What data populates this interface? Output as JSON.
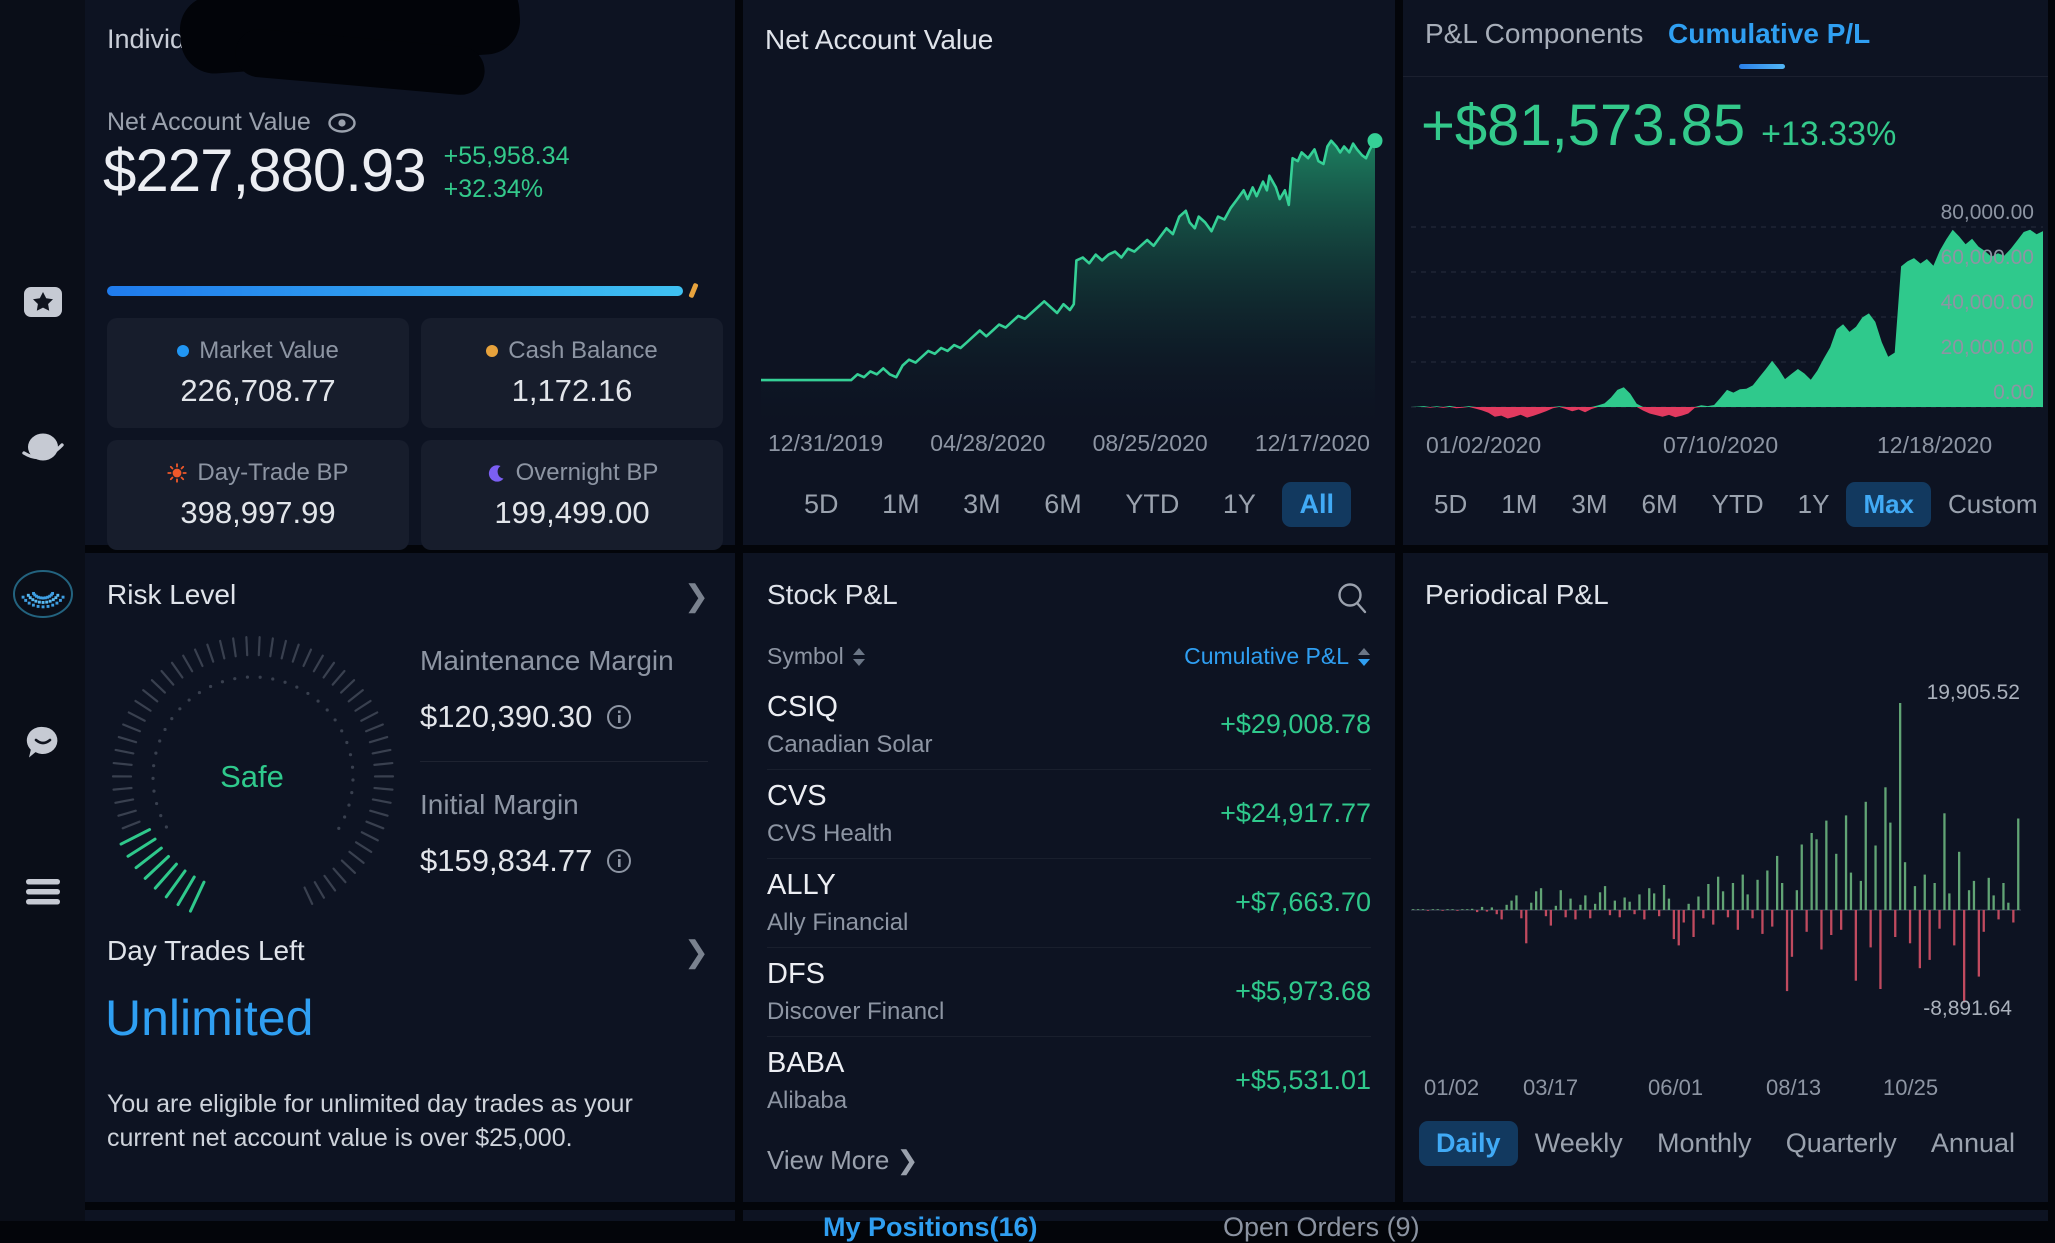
{
  "sidebar": {
    "icons": [
      {
        "name": "favorites-star-icon"
      },
      {
        "name": "planet-markets-icon"
      },
      {
        "name": "webull-logo-icon"
      },
      {
        "name": "chat-community-icon"
      },
      {
        "name": "menu-icon"
      }
    ]
  },
  "account_panel": {
    "account_type": "Individual",
    "nav_label": "Net Account Value",
    "nav_value": "$227,880.93",
    "nav_change": "+55,958.34",
    "nav_change_pct": "+32.34%",
    "stats": [
      {
        "label": "Market Value",
        "value": "226,708.77",
        "icon": "blue-dot",
        "color": "#2196f3"
      },
      {
        "label": "Cash Balance",
        "value": "1,172.16",
        "icon": "yellow-dot",
        "color": "#e7a23c"
      },
      {
        "label": "Day-Trade BP",
        "value": "398,997.99",
        "icon": "sun",
        "color": "#f0582a"
      },
      {
        "label": "Overnight BP",
        "value": "199,499.00",
        "icon": "moon",
        "color": "#7b5ff2"
      }
    ]
  },
  "nav_chart_panel": {
    "title": "Net Account Value",
    "ranges": [
      "5D",
      "1M",
      "3M",
      "6M",
      "YTD",
      "1Y",
      "All"
    ],
    "selected_range": "All"
  },
  "pl_panel": {
    "tabs": [
      "P&L Components",
      "Cumulative P/L"
    ],
    "active_tab": "Cumulative P/L",
    "total": "+$81,573.85",
    "total_pct": "+13.33%",
    "ranges": [
      "5D",
      "1M",
      "3M",
      "6M",
      "YTD",
      "1Y",
      "Max",
      "Custom"
    ],
    "selected_range": "Max"
  },
  "risk_panel": {
    "title": "Risk Level",
    "gauge_status": "Safe",
    "items": [
      {
        "label": "Maintenance Margin",
        "value": "$120,390.30"
      },
      {
        "label": "Initial Margin",
        "value": "$159,834.77"
      }
    ],
    "day_trades": {
      "title": "Day Trades Left",
      "value": "Unlimited",
      "description": "You are eligible for unlimited day trades as your current net account value is over $25,000."
    }
  },
  "stock_pl_panel": {
    "title": "Stock P&L",
    "columns": [
      "Symbol",
      "Cumulative P&L"
    ],
    "rows": [
      {
        "symbol": "CSIQ",
        "name": "Canadian Solar",
        "value": "+$29,008.78"
      },
      {
        "symbol": "CVS",
        "name": "CVS Health",
        "value": "+$24,917.77"
      },
      {
        "symbol": "ALLY",
        "name": "Ally Financial",
        "value": "+$7,663.70"
      },
      {
        "symbol": "DFS",
        "name": "Discover Financl",
        "value": "+$5,973.68"
      },
      {
        "symbol": "BABA",
        "name": "Alibaba",
        "value": "+$5,531.01"
      }
    ],
    "view_more": "View More"
  },
  "periodical_panel": {
    "title": "Periodical P&L",
    "ranges": [
      "Daily",
      "Weekly",
      "Monthly",
      "Quarterly",
      "Annual"
    ],
    "selected_range": "Daily"
  },
  "bottom_tabs": {
    "positions": "My Positions(16)",
    "open_orders": "Open Orders (9)"
  },
  "colors": {
    "green": "#2fc98c",
    "red": "#e13a5f",
    "blue": "#2f9ff2",
    "bar_green": "#61a475",
    "bar_red": "#c04a5f",
    "panel_bg": "#0d1322"
  },
  "chart_data": [
    {
      "id": "net_account_value",
      "type": "area",
      "title": "Net Account Value",
      "x_ticks": [
        "12/31/2019",
        "04/28/2020",
        "08/25/2020",
        "12/17/2020"
      ],
      "points_pct": [
        [
          0,
          14
        ],
        [
          3,
          14
        ],
        [
          6,
          14
        ],
        [
          9,
          14
        ],
        [
          12,
          14
        ],
        [
          14,
          14
        ],
        [
          15,
          16
        ],
        [
          16,
          15
        ],
        [
          17,
          17
        ],
        [
          18,
          16
        ],
        [
          19,
          18
        ],
        [
          20,
          16
        ],
        [
          21,
          15
        ],
        [
          22,
          19
        ],
        [
          23,
          21
        ],
        [
          24,
          20
        ],
        [
          25,
          22
        ],
        [
          26,
          24
        ],
        [
          27,
          23
        ],
        [
          28,
          25
        ],
        [
          29,
          24
        ],
        [
          30,
          26
        ],
        [
          31,
          25
        ],
        [
          32,
          27
        ],
        [
          33,
          29
        ],
        [
          34,
          31
        ],
        [
          35,
          29
        ],
        [
          36,
          31
        ],
        [
          37,
          33
        ],
        [
          38,
          32
        ],
        [
          39,
          34
        ],
        [
          40,
          36
        ],
        [
          41,
          35
        ],
        [
          42,
          37
        ],
        [
          43,
          39
        ],
        [
          44,
          41
        ],
        [
          45,
          39
        ],
        [
          46,
          37
        ],
        [
          47,
          40
        ],
        [
          48,
          38
        ],
        [
          48.6,
          40
        ],
        [
          49,
          55
        ],
        [
          50,
          56
        ],
        [
          51,
          54
        ],
        [
          52,
          57
        ],
        [
          53,
          55
        ],
        [
          54,
          57
        ],
        [
          55,
          58
        ],
        [
          56,
          56
        ],
        [
          57,
          59
        ],
        [
          58,
          58
        ],
        [
          59,
          60
        ],
        [
          60,
          62
        ],
        [
          61,
          60
        ],
        [
          62,
          63
        ],
        [
          63,
          66
        ],
        [
          64,
          64
        ],
        [
          65,
          70
        ],
        [
          66,
          72
        ],
        [
          66.6,
          68
        ],
        [
          67.4,
          66
        ],
        [
          68,
          70
        ],
        [
          69,
          68
        ],
        [
          70,
          65
        ],
        [
          71,
          70
        ],
        [
          72,
          69
        ],
        [
          73,
          73
        ],
        [
          74,
          76
        ],
        [
          75,
          79
        ],
        [
          75.6,
          76
        ],
        [
          76.4,
          80
        ],
        [
          77,
          77
        ],
        [
          78,
          82
        ],
        [
          78.6,
          79
        ],
        [
          79,
          84
        ],
        [
          80,
          80
        ],
        [
          80.6,
          76
        ],
        [
          81.4,
          79
        ],
        [
          82,
          74
        ],
        [
          82.6,
          90
        ],
        [
          83.4,
          89
        ],
        [
          84,
          92
        ],
        [
          85,
          90
        ],
        [
          86,
          93
        ],
        [
          86.6,
          89
        ],
        [
          87.4,
          88
        ],
        [
          88,
          94
        ],
        [
          88.6,
          96
        ],
        [
          89.4,
          94
        ],
        [
          90,
          92
        ],
        [
          90.6,
          94
        ],
        [
          91.4,
          92
        ],
        [
          92,
          95
        ],
        [
          92.6,
          93
        ],
        [
          93.4,
          91
        ],
        [
          94,
          90
        ],
        [
          94.6,
          93
        ],
        [
          95.4,
          96
        ]
      ]
    },
    {
      "id": "cumulative_pl",
      "type": "area",
      "title": "Cumulative P/L",
      "x_ticks": [
        "01/02/2020",
        "07/10/2020",
        "12/18/2020"
      ],
      "y_ticks": [
        "80,000.00",
        "60,000.00",
        "40,000.00",
        "20,000.00",
        "0.00"
      ],
      "ylim": [
        -9000,
        86000
      ],
      "gridline_step": 20000,
      "values": [
        0,
        200,
        400,
        -300,
        300,
        -400,
        500,
        -600,
        -300,
        400,
        -700,
        -1500,
        -2600,
        -4300,
        -3800,
        -5100,
        -4400,
        -3400,
        -4700,
        -3900,
        -2900,
        -1800,
        -600,
        300,
        -900,
        -1900,
        -1100,
        -2300,
        -900,
        700,
        1600,
        4200,
        7600,
        8800,
        5900,
        1400,
        -1600,
        -2900,
        -3600,
        -4300,
        -3500,
        -4600,
        -3800,
        -2900,
        -400,
        800,
        400,
        900,
        4200,
        7600,
        6400,
        7900,
        8100,
        9600,
        13200,
        16800,
        20600,
        16900,
        12400,
        14700,
        16900,
        14900,
        12100,
        16200,
        21500,
        26500,
        34500,
        36800,
        33400,
        35700,
        39800,
        41600,
        37800,
        28800,
        22300,
        24200,
        62500,
        64800,
        66200,
        63800,
        65800,
        62800,
        69500,
        74500,
        78800,
        75800,
        72300,
        74800,
        71300,
        69300,
        66800,
        68300,
        67300,
        70300,
        74000,
        77800,
        78800,
        76800,
        78200
      ]
    },
    {
      "id": "periodical_pl",
      "type": "bar",
      "title": "Periodical P&L",
      "x_ticks": [
        "01/02",
        "03/17",
        "06/01",
        "08/13",
        "10/25"
      ],
      "max_label": "19,905.52",
      "min_label": "-8,891.64",
      "max_value": 19905.52,
      "min_value": -8891.64,
      "values": [
        0,
        0,
        50,
        -30,
        0,
        80,
        -50,
        0,
        40,
        -60,
        30,
        0,
        120,
        -200,
        300,
        -150,
        250,
        -400,
        -900,
        500,
        900,
        1400,
        -800,
        -3200,
        700,
        1800,
        2100,
        -600,
        -1500,
        400,
        1900,
        -700,
        1100,
        -900,
        500,
        1400,
        -800,
        600,
        1700,
        2300,
        -500,
        900,
        -700,
        1200,
        800,
        -400,
        1500,
        -900,
        2100,
        1600,
        -600,
        2400,
        1100,
        -2800,
        -3400,
        -1200,
        600,
        -2600,
        1300,
        -800,
        2500,
        -1400,
        3200,
        1800,
        -700,
        2600,
        -1900,
        3400,
        1500,
        -800,
        2900,
        -2300,
        3800,
        -1600,
        5200,
        2600,
        -7800,
        -4500,
        1900,
        6300,
        -2100,
        7400,
        6800,
        -3800,
        8600,
        -2400,
        5400,
        -1900,
        9100,
        3600,
        -6800,
        2800,
        10400,
        -3600,
        6200,
        -7600,
        11800,
        8400,
        -2600,
        19905.52,
        4600,
        -3200,
        2300,
        -5600,
        3400,
        -4800,
        2600,
        -1800,
        9300,
        1600,
        -3400,
        5600,
        -8891.64,
        1900,
        2800,
        -6400,
        -2100,
        3100,
        1400,
        -900,
        2600,
        700,
        -1200,
        8800
      ]
    }
  ]
}
